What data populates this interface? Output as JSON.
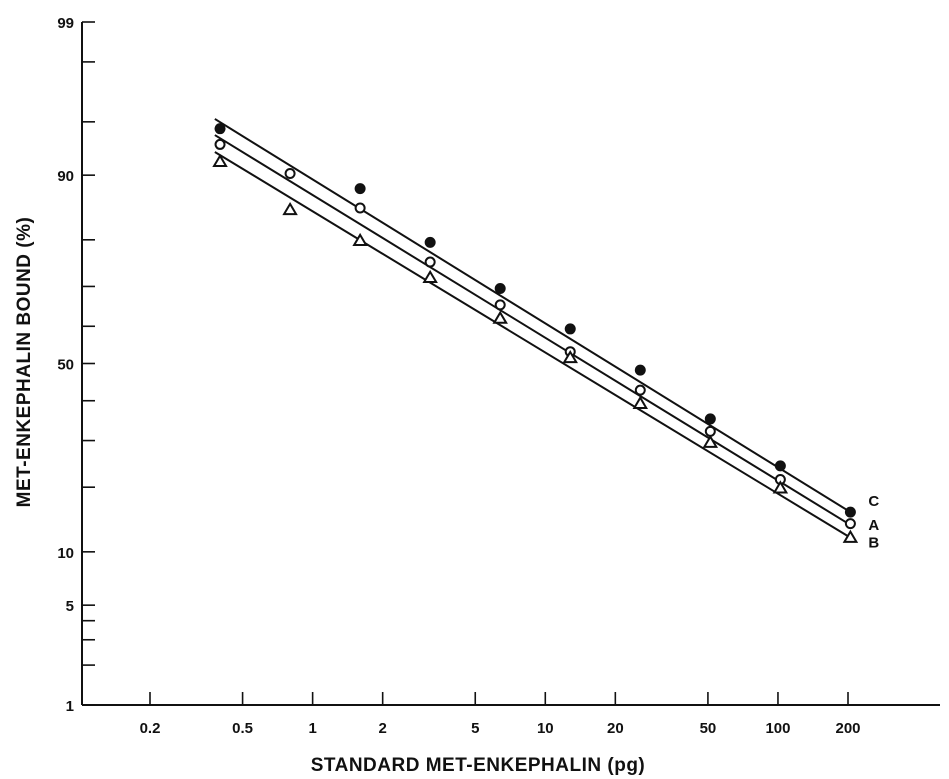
{
  "chart_data": {
    "type": "scatter",
    "title": "",
    "xlabel": "STANDARD MET-ENKEPHALIN (pg)",
    "ylabel": "MET-ENKEPHALIN BOUND (%)",
    "x_scale": "log",
    "y_scale": "probability",
    "xlim": [
      0.1,
      500
    ],
    "ylim": [
      1,
      99
    ],
    "grid": false,
    "x_ticks": [
      0.2,
      0.5,
      1,
      2,
      5,
      10,
      20,
      50,
      100,
      200
    ],
    "x_tick_labels": [
      "0.2",
      "0.5",
      "1",
      "2",
      "5",
      "10",
      "20",
      "50",
      "100",
      "200"
    ],
    "y_ticks": [
      1,
      2,
      3,
      4,
      5,
      10,
      20,
      30,
      40,
      50,
      60,
      70,
      80,
      90,
      95,
      98,
      99
    ],
    "y_tick_labels": [
      {
        "value": 1,
        "label": "1"
      },
      {
        "value": 5,
        "label": "5"
      },
      {
        "value": 10,
        "label": "10"
      },
      {
        "value": 50,
        "label": "50"
      },
      {
        "value": 90,
        "label": "90"
      },
      {
        "value": 99,
        "label": "99"
      }
    ],
    "series": [
      {
        "name": "C",
        "marker": "filled-circle",
        "x": [
          0.4,
          1.6,
          3.2,
          6.4,
          12.8,
          25.6,
          51.2,
          102.4,
          204.8
        ],
        "y": [
          94.5,
          88.3,
          79.5,
          69.5,
          59.3,
          48.2,
          35.3,
          24.3,
          15.6
        ],
        "line": {
          "x": [
            0.38,
            204.8
          ],
          "y": [
            95.2,
            15.6
          ]
        }
      },
      {
        "name": "A",
        "marker": "open-circle",
        "x": [
          0.4,
          0.8,
          1.6,
          3.2,
          6.4,
          12.8,
          25.6,
          51.2,
          102.4,
          204.8
        ],
        "y": [
          93.2,
          90.2,
          85.5,
          75.5,
          65.5,
          53.2,
          42.8,
          32.2,
          21.5,
          13.8
        ],
        "line": {
          "x": [
            0.38,
            204.8
          ],
          "y": [
            94.0,
            13.6
          ]
        }
      },
      {
        "name": "B",
        "marker": "open-triangle",
        "x": [
          0.4,
          0.8,
          1.6,
          3.2,
          6.4,
          12.8,
          25.6,
          51.2,
          102.4,
          204.8
        ],
        "y": [
          91.5,
          85.2,
          79.8,
          72.0,
          62.0,
          51.5,
          39.2,
          29.5,
          19.8,
          11.8
        ],
        "line": {
          "x": [
            0.38,
            204.8
          ],
          "y": [
            92.5,
            11.8
          ]
        }
      }
    ]
  }
}
